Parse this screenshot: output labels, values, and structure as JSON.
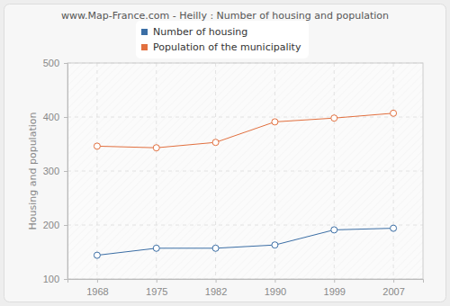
{
  "chart_data": {
    "type": "line",
    "title": "www.Map-France.com - Heilly : Number of housing and population",
    "y_label": "Housing and population",
    "categories": [
      "1968",
      "1975",
      "1982",
      "1990",
      "1999",
      "2007"
    ],
    "series": [
      {
        "name": "Number of housing",
        "color": "#3b6ea5",
        "values": [
          144,
          157,
          157,
          163,
          191,
          194
        ]
      },
      {
        "name": "Population of the municipality",
        "color": "#e2703f",
        "values": [
          346,
          343,
          353,
          391,
          398,
          407
        ]
      }
    ],
    "ylim": [
      100,
      500
    ],
    "yticks": [
      100,
      200,
      300,
      400,
      500
    ],
    "grid": true,
    "legend": "top",
    "marker": "circle"
  }
}
